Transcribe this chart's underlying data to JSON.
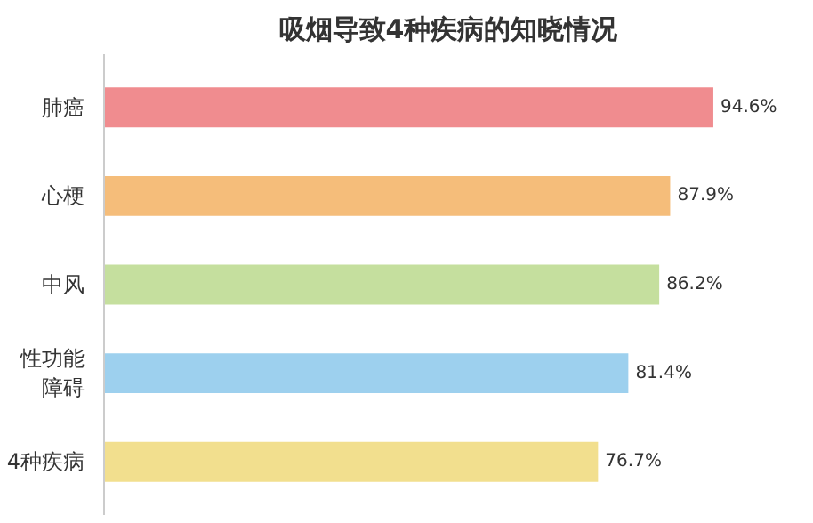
{
  "chart_data": {
    "type": "bar",
    "orientation": "horizontal",
    "title": "吸烟导致4种疾病的知晓情况",
    "categories": [
      "肺癌",
      "心梗",
      "中风",
      "性功能障碍",
      "4种疾病"
    ],
    "values": [
      94.6,
      87.9,
      86.2,
      81.4,
      76.7
    ],
    "colors": [
      "#f08c8f",
      "#f5bd7a",
      "#c5df9e",
      "#9dd0ee",
      "#f2df8e"
    ],
    "value_labels": [
      "94.6%",
      "87.9%",
      "86.2%",
      "81.4%",
      "76.7%"
    ],
    "grid": false
  }
}
